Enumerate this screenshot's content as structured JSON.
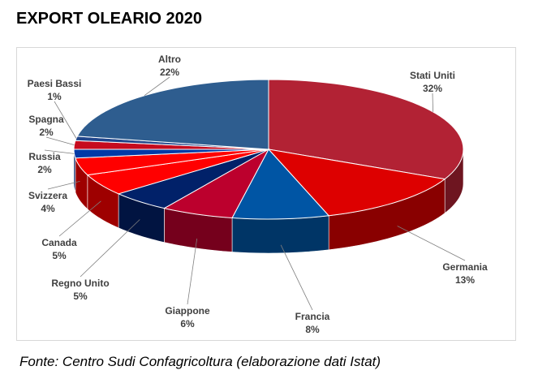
{
  "title": "EXPORT OLEARIO 2020",
  "source": "Fonte: Centro Sudi Confagricoltura (elaborazione dati Istat)",
  "chart_data": {
    "type": "pie",
    "title": "EXPORT OLEARIO 2020",
    "unit": "%",
    "slices": [
      {
        "label": "Stati Uniti",
        "value": 32,
        "display": "32%",
        "color": "#b22234"
      },
      {
        "label": "Germania",
        "value": 13,
        "display": "13%",
        "color": "#dd0000"
      },
      {
        "label": "Francia",
        "value": 8,
        "display": "8%",
        "color": "#0055a4"
      },
      {
        "label": "Giappone",
        "value": 6,
        "display": "6%",
        "color": "#bc002d"
      },
      {
        "label": "Regno Unito",
        "value": 5,
        "display": "5%",
        "color": "#012169"
      },
      {
        "label": "Canada",
        "value": 5,
        "display": "5%",
        "color": "#ff0000"
      },
      {
        "label": "Svizzera",
        "value": 4,
        "display": "4%",
        "color": "#ff0000"
      },
      {
        "label": "Russia",
        "value": 2,
        "display": "2%",
        "color": "#0039a6"
      },
      {
        "label": "Spagna",
        "value": 2,
        "display": "2%",
        "color": "#c60b1e"
      },
      {
        "label": "Paesi Bassi",
        "value": 1,
        "display": "1%",
        "color": "#21468b"
      },
      {
        "label": "Altro",
        "value": 22,
        "display": "22%",
        "color": "#2e5d8f"
      }
    ]
  }
}
